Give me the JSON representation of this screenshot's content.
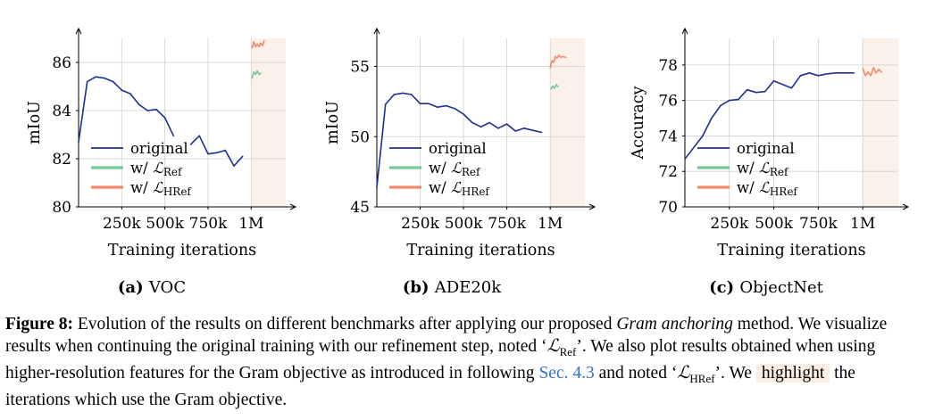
{
  "chart_data": [
    {
      "type": "line",
      "subcaption_label": "(a)",
      "subcaption_name": "VOC",
      "xlabel": "Training iterations",
      "ylabel": "mIoU",
      "xlim": [
        0,
        1200000
      ],
      "ylim": [
        80,
        87
      ],
      "xticks": [
        250000,
        500000,
        750000,
        1000000
      ],
      "xtick_labels": [
        "250k",
        "500k",
        "750k",
        "1M"
      ],
      "yticks": [
        80,
        82,
        84,
        86
      ],
      "ytick_labels": [
        "80",
        "82",
        "84",
        "86"
      ],
      "highlight_start": 1000000,
      "legend_position": "lower-left",
      "series": [
        {
          "name": "original",
          "color": "#1f2f8f",
          "segments": [
            [
              [
                0,
                82.7
              ],
              [
                50000,
                85.2
              ],
              [
                100000,
                85.4
              ],
              [
                150000,
                85.35
              ],
              [
                200000,
                85.2
              ],
              [
                250000,
                84.85
              ],
              [
                300000,
                84.7
              ],
              [
                350000,
                84.25
              ],
              [
                400000,
                84.0
              ],
              [
                450000,
                84.05
              ],
              [
                500000,
                83.7
              ],
              [
                550000,
                82.95
              ]
            ],
            [
              [
                650000,
                82.6
              ],
              [
                700000,
                82.95
              ],
              [
                750000,
                82.2
              ],
              [
                800000,
                82.25
              ],
              [
                850000,
                82.35
              ],
              [
                900000,
                81.7
              ],
              [
                950000,
                82.1
              ]
            ]
          ]
        },
        {
          "name": "w/ ℒRef",
          "color": "#74c99a",
          "segments": [
            [
              [
                1005000,
                85.35
              ],
              [
                1015000,
                85.6
              ],
              [
                1025000,
                85.5
              ],
              [
                1035000,
                85.65
              ],
              [
                1045000,
                85.5
              ],
              [
                1055000,
                85.55
              ]
            ]
          ]
        },
        {
          "name": "w/ ℒHRef",
          "color": "#f18a6c",
          "segments": [
            [
              [
                1005000,
                86.6
              ],
              [
                1015000,
                86.85
              ],
              [
                1025000,
                86.65
              ],
              [
                1035000,
                86.75
              ],
              [
                1045000,
                86.65
              ],
              [
                1055000,
                86.8
              ],
              [
                1065000,
                86.7
              ],
              [
                1075000,
                86.9
              ]
            ]
          ]
        }
      ]
    },
    {
      "type": "line",
      "subcaption_label": "(b)",
      "subcaption_name": "ADE20k",
      "xlabel": "Training iterations",
      "ylabel": "mIoU",
      "xlim": [
        0,
        1200000
      ],
      "ylim": [
        45,
        57
      ],
      "xticks": [
        250000,
        500000,
        750000,
        1000000
      ],
      "xtick_labels": [
        "250k",
        "500k",
        "750k",
        "1M"
      ],
      "yticks": [
        45,
        50,
        55
      ],
      "ytick_labels": [
        "45",
        "50",
        "55"
      ],
      "highlight_start": 1000000,
      "legend_position": "lower-left",
      "series": [
        {
          "name": "original",
          "color": "#1f2f8f",
          "segments": [
            [
              [
                0,
                46.4
              ],
              [
                50000,
                52.3
              ],
              [
                100000,
                53.0
              ],
              [
                150000,
                53.1
              ],
              [
                200000,
                53.0
              ],
              [
                250000,
                52.35
              ],
              [
                300000,
                52.35
              ],
              [
                350000,
                52.1
              ],
              [
                400000,
                52.2
              ],
              [
                450000,
                52.0
              ],
              [
                500000,
                51.6
              ],
              [
                550000,
                51.0
              ],
              [
                600000,
                50.7
              ],
              [
                650000,
                51.0
              ],
              [
                700000,
                50.6
              ],
              [
                750000,
                50.9
              ],
              [
                800000,
                50.4
              ],
              [
                850000,
                50.6
              ],
              [
                900000,
                50.45
              ],
              [
                950000,
                50.3
              ]
            ]
          ]
        },
        {
          "name": "w/ ℒRef",
          "color": "#74c99a",
          "segments": [
            [
              [
                1005000,
                53.4
              ],
              [
                1015000,
                53.6
              ],
              [
                1025000,
                53.45
              ],
              [
                1035000,
                53.7
              ],
              [
                1045000,
                53.55
              ]
            ]
          ]
        },
        {
          "name": "w/ ℒHRef",
          "color": "#f18a6c",
          "segments": [
            [
              [
                1000000,
                54.9
              ],
              [
                1010000,
                55.4
              ],
              [
                1020000,
                55.3
              ],
              [
                1030000,
                55.7
              ],
              [
                1040000,
                55.6
              ],
              [
                1050000,
                55.8
              ],
              [
                1060000,
                55.65
              ],
              [
                1075000,
                55.7
              ],
              [
                1090000,
                55.65
              ]
            ]
          ]
        }
      ]
    },
    {
      "type": "line",
      "subcaption_label": "(c)",
      "subcaption_name": "ObjectNet",
      "xlabel": "Training iterations",
      "ylabel": "Accuracy",
      "xlim": [
        0,
        1200000
      ],
      "ylim": [
        70,
        79.5
      ],
      "xticks": [
        250000,
        500000,
        750000,
        1000000
      ],
      "xtick_labels": [
        "250k",
        "500k",
        "750k",
        "1M"
      ],
      "yticks": [
        70,
        72,
        74,
        76,
        78
      ],
      "ytick_labels": [
        "70",
        "72",
        "74",
        "76",
        "78"
      ],
      "highlight_start": 1000000,
      "legend_position": "lower-left",
      "series": [
        {
          "name": "original",
          "color": "#1f2f8f",
          "segments": [
            [
              [
                0,
                72.7
              ],
              [
                100000,
                74.0
              ],
              [
                150000,
                75.0
              ],
              [
                200000,
                75.7
              ],
              [
                250000,
                76.0
              ],
              [
                300000,
                76.05
              ],
              [
                350000,
                76.6
              ],
              [
                400000,
                76.45
              ],
              [
                450000,
                76.5
              ],
              [
                500000,
                77.1
              ],
              [
                550000,
                76.9
              ],
              [
                600000,
                76.7
              ],
              [
                650000,
                77.4
              ],
              [
                700000,
                77.55
              ],
              [
                750000,
                77.4
              ],
              [
                800000,
                77.5
              ],
              [
                850000,
                77.55
              ],
              [
                900000,
                77.55
              ],
              [
                950000,
                77.55
              ]
            ]
          ]
        },
        {
          "name": "w/ ℒRef",
          "color": "#74c99a",
          "segments": []
        },
        {
          "name": "w/ ℒHRef",
          "color": "#f18a6c",
          "segments": [
            [
              [
                1000000,
                77.8
              ],
              [
                1015000,
                77.4
              ],
              [
                1030000,
                77.6
              ],
              [
                1045000,
                77.4
              ],
              [
                1060000,
                77.85
              ],
              [
                1075000,
                77.55
              ],
              [
                1090000,
                77.75
              ],
              [
                1105000,
                77.6
              ]
            ]
          ]
        }
      ]
    }
  ],
  "legend": {
    "original": "original",
    "ref_prefix": "w/ ",
    "ref_L": "ℒ",
    "ref_sub": "Ref",
    "href_prefix": "w/ ",
    "href_L": "ℒ",
    "href_sub": "HRef"
  },
  "caption": {
    "figure_label": "Figure 8:",
    "t1": " Evolution of the results on different benchmarks after applying our proposed ",
    "gram_anchoring": "Gram anchoring",
    "t2": " method. We visualize results when continuing the original training with our refinement step, noted ‘",
    "ref_L": "ℒ",
    "ref_sub": "Ref",
    "t3": "’. We also plot results obtained when using higher-resolution features for the Gram objective as introduced in following ",
    "sec_link": "Sec. 4.3",
    "t4": " and noted ‘",
    "href_L": "ℒ",
    "href_sub": "HRef",
    "t5": "’. We ",
    "highlight_word": "highlight",
    "t6": " the iterations which use the Gram objective."
  }
}
